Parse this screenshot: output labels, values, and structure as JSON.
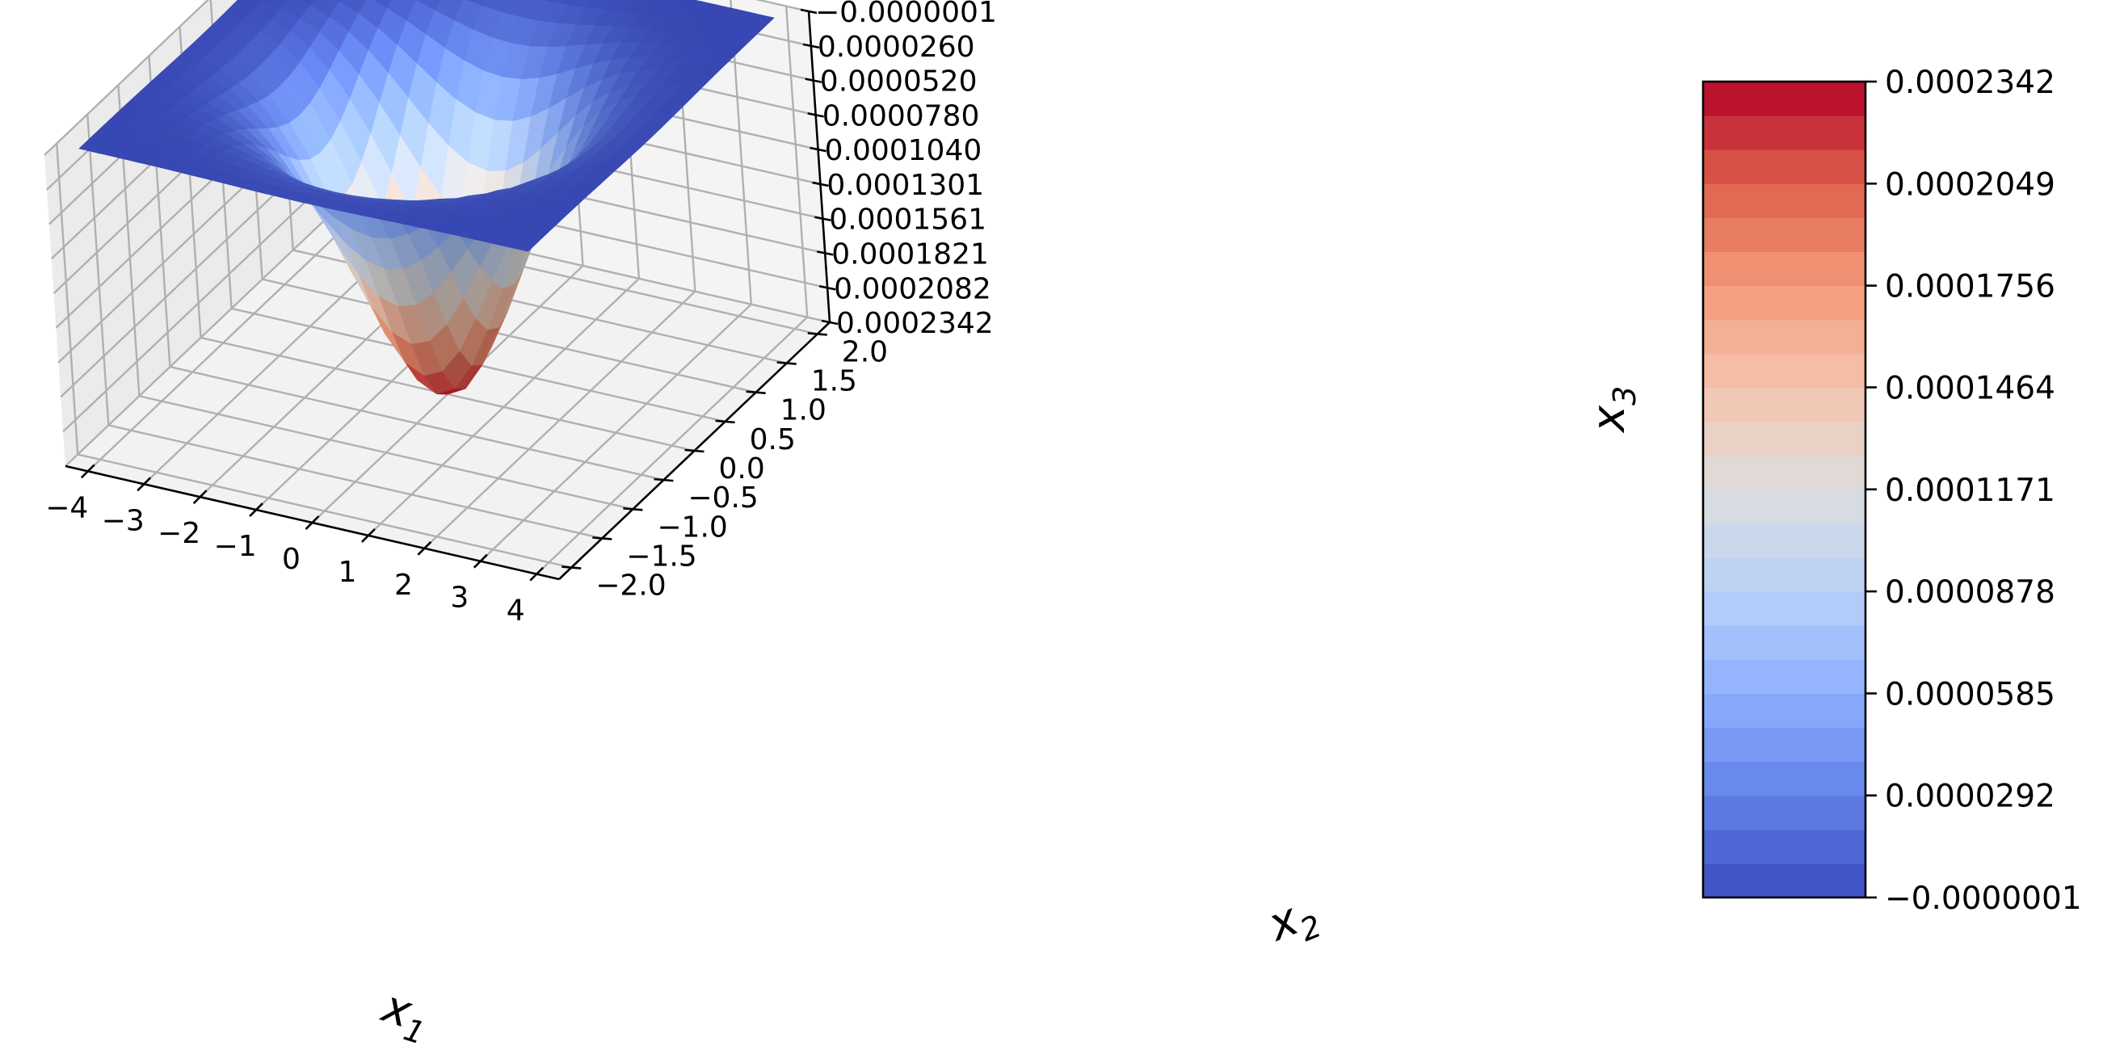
{
  "chart_data": [
    {
      "type": "surface3d",
      "description_units": "x1, x2 in data units; x3 plotted with inverted z-axis (minimum value at top)",
      "x1": {
        "label": "x",
        "label_sub": "1",
        "range": [
          -4.4,
          4.4
        ],
        "ticks": [
          -4,
          -3,
          -2,
          -1,
          0,
          1,
          2,
          3,
          4
        ],
        "tick_labels": [
          "−4",
          "−3",
          "−2",
          "−1",
          "0",
          "1",
          "2",
          "3",
          "4"
        ]
      },
      "x2": {
        "label": "x",
        "label_sub": "2",
        "range": [
          -2.2,
          2.2
        ],
        "ticks": [
          -2.0,
          -1.5,
          -1.0,
          -0.5,
          0.0,
          0.5,
          1.0,
          1.5,
          2.0
        ],
        "tick_labels": [
          "−2.0",
          "−1.5",
          "−1.0",
          "−0.5",
          "0.0",
          "0.5",
          "1.0",
          "1.5",
          "2.0"
        ]
      },
      "x3": {
        "label": "x",
        "label_sub": "3",
        "inverted": true,
        "range": [
          -1e-07,
          0.0002342
        ],
        "ticks": [
          -1e-07,
          2.6e-05,
          5.2e-05,
          7.8e-05,
          0.000104,
          0.0001301,
          0.0001561,
          0.0001821,
          0.0002082,
          0.0002342
        ],
        "tick_labels": [
          "−0.0000001",
          "0.0000260",
          "0.0000520",
          "0.0000780",
          "0.0001040",
          "0.0001301",
          "0.0001561",
          "0.0001821",
          "0.0002082",
          "0.0002342"
        ]
      },
      "surface": {
        "shape": "gaussian_bump",
        "peak_value": 0.0002342,
        "peak_at": [
          0,
          0
        ],
        "edge_value": -1e-07,
        "sigma_x1": 1.3,
        "sigma_x2": 0.65,
        "grid_x1_samples": 25,
        "grid_x2_samples": 25,
        "colormap": "coolwarm"
      },
      "grid": true
    },
    {
      "type": "colorbar",
      "colormap": "coolwarm",
      "levels": 24,
      "range": [
        -1e-07,
        0.0002342
      ],
      "ticks": [
        -1e-07,
        2.92e-05,
        5.85e-05,
        8.78e-05,
        0.0001171,
        0.0001464,
        0.0001756,
        0.0002049,
        0.0002342
      ],
      "tick_labels": [
        "−0.0000001",
        "0.0000292",
        "0.0000585",
        "0.0000878",
        "0.0001171",
        "0.0001464",
        "0.0001756",
        "0.0002049",
        "0.0002342"
      ]
    }
  ]
}
